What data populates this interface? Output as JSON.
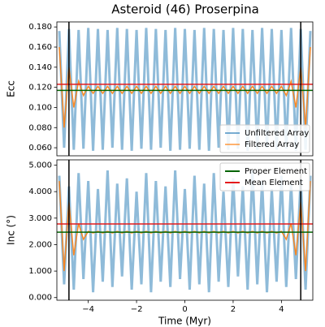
{
  "chart_data": [
    {
      "type": "line",
      "title": "Asteroid (46) Proserpina",
      "ylabel": "Ecc",
      "xlim": [
        -5.3,
        5.3
      ],
      "ylim": [
        0.052,
        0.185
      ],
      "yticks": [
        {
          "value": 0.06,
          "label": "0.060"
        },
        {
          "value": 0.08,
          "label": "0.080"
        },
        {
          "value": 0.1,
          "label": "0.100"
        },
        {
          "value": 0.12,
          "label": "0.120"
        },
        {
          "value": 0.14,
          "label": "0.140"
        },
        {
          "value": 0.16,
          "label": "0.160"
        },
        {
          "value": 0.18,
          "label": "0.180"
        }
      ],
      "legend": "lower right",
      "x": [
        -5.2,
        -5.0,
        -4.8,
        -4.6,
        -4.4,
        -4.2,
        -4.0,
        -3.8,
        -3.6,
        -3.4,
        -3.2,
        -3.0,
        -2.8,
        -2.6,
        -2.4,
        -2.2,
        -2.0,
        -1.8,
        -1.6,
        -1.4,
        -1.2,
        -1.0,
        -0.8,
        -0.6,
        -0.4,
        -0.2,
        0.0,
        0.2,
        0.4,
        0.6,
        0.8,
        1.0,
        1.2,
        1.4,
        1.6,
        1.8,
        2.0,
        2.2,
        2.4,
        2.6,
        2.8,
        3.0,
        3.2,
        3.4,
        3.6,
        3.8,
        4.0,
        4.2,
        4.4,
        4.6,
        4.8,
        5.0,
        5.2
      ],
      "series": [
        {
          "name": "Unfiltered Array",
          "color": "#1f77b4",
          "values": [
            0.176,
            0.06,
            0.178,
            0.058,
            0.177,
            0.059,
            0.179,
            0.057,
            0.178,
            0.058,
            0.177,
            0.06,
            0.179,
            0.058,
            0.178,
            0.057,
            0.177,
            0.059,
            0.179,
            0.058,
            0.178,
            0.06,
            0.177,
            0.057,
            0.179,
            0.058,
            0.178,
            0.059,
            0.177,
            0.058,
            0.179,
            0.057,
            0.178,
            0.06,
            0.177,
            0.058,
            0.179,
            0.059,
            0.178,
            0.057,
            0.177,
            0.058,
            0.179,
            0.06,
            0.178,
            0.058,
            0.177,
            0.059,
            0.179,
            0.057,
            0.178,
            0.058,
            0.176
          ]
        },
        {
          "name": "Filtered Array",
          "color": "#ff7f0e",
          "values": [
            0.16,
            0.08,
            0.14,
            0.1,
            0.126,
            0.112,
            0.121,
            0.114,
            0.121,
            0.114,
            0.121,
            0.114,
            0.121,
            0.114,
            0.121,
            0.114,
            0.121,
            0.114,
            0.121,
            0.114,
            0.121,
            0.114,
            0.121,
            0.114,
            0.121,
            0.114,
            0.121,
            0.114,
            0.121,
            0.114,
            0.121,
            0.114,
            0.121,
            0.114,
            0.121,
            0.114,
            0.121,
            0.114,
            0.121,
            0.114,
            0.121,
            0.114,
            0.121,
            0.114,
            0.121,
            0.114,
            0.121,
            0.112,
            0.126,
            0.1,
            0.14,
            0.08,
            0.16
          ]
        }
      ],
      "hlines": [
        {
          "value": 0.117,
          "color": "#006400"
        },
        {
          "value": 0.123,
          "color": "#e41a1c"
        }
      ],
      "vlines": [
        -4.8,
        4.8
      ]
    },
    {
      "type": "line",
      "ylabel": "Inc (°)",
      "xlabel": "Time (Myr)",
      "xlim": [
        -5.3,
        5.3
      ],
      "ylim": [
        -0.1,
        5.2
      ],
      "xticks": [
        {
          "value": -4,
          "label": "−4"
        },
        {
          "value": -2,
          "label": "−2"
        },
        0,
        2,
        4
      ],
      "yticks": [
        {
          "value": 0,
          "label": "0.000"
        },
        {
          "value": 1,
          "label": "1.000"
        },
        {
          "value": 2,
          "label": "2.000"
        },
        {
          "value": 3,
          "label": "3.000"
        },
        {
          "value": 4,
          "label": "4.000"
        },
        {
          "value": 5,
          "label": "5.000"
        }
      ],
      "legend": "upper right",
      "x": [
        -5.2,
        -5.0,
        -4.8,
        -4.6,
        -4.4,
        -4.2,
        -4.0,
        -3.8,
        -3.6,
        -3.4,
        -3.2,
        -3.0,
        -2.8,
        -2.6,
        -2.4,
        -2.2,
        -2.0,
        -1.8,
        -1.6,
        -1.4,
        -1.2,
        -1.0,
        -0.8,
        -0.6,
        -0.4,
        -0.2,
        0.0,
        0.2,
        0.4,
        0.6,
        0.8,
        1.0,
        1.2,
        1.4,
        1.6,
        1.8,
        2.0,
        2.2,
        2.4,
        2.6,
        2.8,
        3.0,
        3.2,
        3.4,
        3.6,
        3.8,
        4.0,
        4.2,
        4.4,
        4.6,
        4.8,
        5.0,
        5.2
      ],
      "series": [
        {
          "color": "#1f77b4",
          "values": [
            4.6,
            0.5,
            4.2,
            0.3,
            4.7,
            0.7,
            4.4,
            0.2,
            4.1,
            0.6,
            4.8,
            0.4,
            4.3,
            0.8,
            4.5,
            0.3,
            4.0,
            0.5,
            4.7,
            0.2,
            4.4,
            0.6,
            4.2,
            0.4,
            4.8,
            0.7,
            4.1,
            0.3,
            4.6,
            0.5,
            4.3,
            0.2,
            4.7,
            0.6,
            4.0,
            0.4,
            4.5,
            0.8,
            4.2,
            0.3,
            4.8,
            0.5,
            4.4,
            0.2,
            4.1,
            0.6,
            4.6,
            0.4,
            4.3,
            0.7,
            4.5,
            0.3,
            4.6
          ]
        },
        {
          "color": "#ff7f0e",
          "values": [
            4.4,
            1.0,
            3.6,
            1.6,
            2.8,
            2.2,
            2.5,
            2.44,
            2.5,
            2.44,
            2.5,
            2.44,
            2.5,
            2.44,
            2.5,
            2.44,
            2.5,
            2.44,
            2.5,
            2.44,
            2.5,
            2.44,
            2.5,
            2.44,
            2.5,
            2.44,
            2.5,
            2.44,
            2.5,
            2.44,
            2.5,
            2.44,
            2.5,
            2.44,
            2.5,
            2.44,
            2.5,
            2.44,
            2.5,
            2.44,
            2.5,
            2.44,
            2.5,
            2.44,
            2.5,
            2.44,
            2.5,
            2.2,
            2.8,
            1.6,
            3.6,
            1.0,
            4.4
          ]
        }
      ],
      "hlines": [
        {
          "name": "Proper Element",
          "value": 2.47,
          "color": "#006400"
        },
        {
          "name": "Mean Element",
          "value": 2.78,
          "color": "#e41a1c"
        }
      ],
      "vlines": [
        -4.8,
        4.8
      ]
    }
  ]
}
